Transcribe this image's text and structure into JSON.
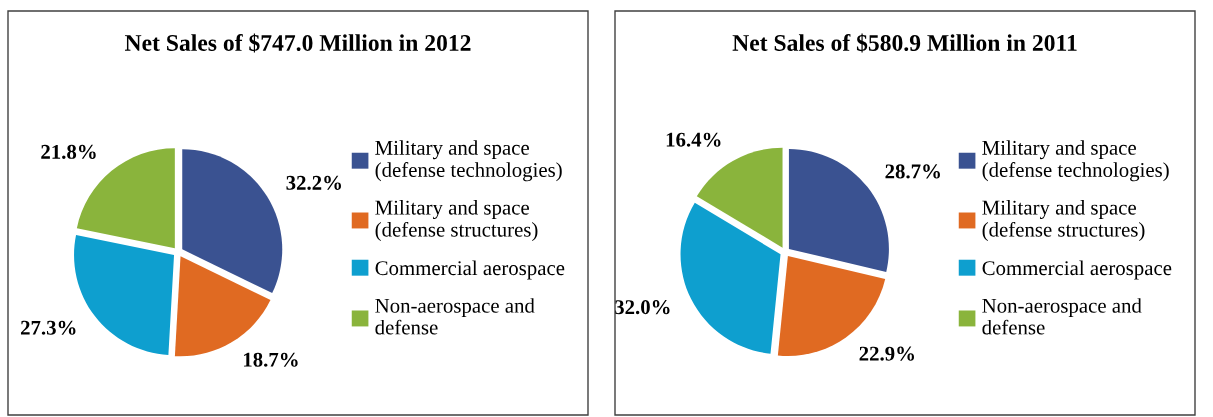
{
  "chart_data": [
    {
      "type": "pie",
      "title": "Net Sales of $747.0 Million in 2012",
      "categories": [
        "Military and space\n(defense technologies)",
        "Military and space\n(defense structures)",
        "Commercial aerospace",
        "Non-aerospace and\ndefense"
      ],
      "values": [
        32.2,
        18.7,
        27.3,
        21.8
      ],
      "value_labels": [
        "32.2%",
        "18.7%",
        "27.3%",
        "21.8%"
      ],
      "colors": [
        "#3a5291",
        "#e06a22",
        "#0e9fcf",
        "#8ab43c"
      ],
      "legend": "right"
    },
    {
      "type": "pie",
      "title": "Net Sales of $580.9 Million in 2011",
      "categories": [
        "Military and space\n(defense technologies)",
        "Military and space\n(defense structures)",
        "Commercial aerospace",
        "Non-aerospace and\ndefense"
      ],
      "values": [
        28.7,
        22.9,
        32.0,
        16.4
      ],
      "value_labels": [
        "28.7%",
        "22.9%",
        "32.0%",
        "16.4%"
      ],
      "colors": [
        "#3a5291",
        "#e06a22",
        "#0e9fcf",
        "#8ab43c"
      ],
      "legend": "right"
    }
  ]
}
